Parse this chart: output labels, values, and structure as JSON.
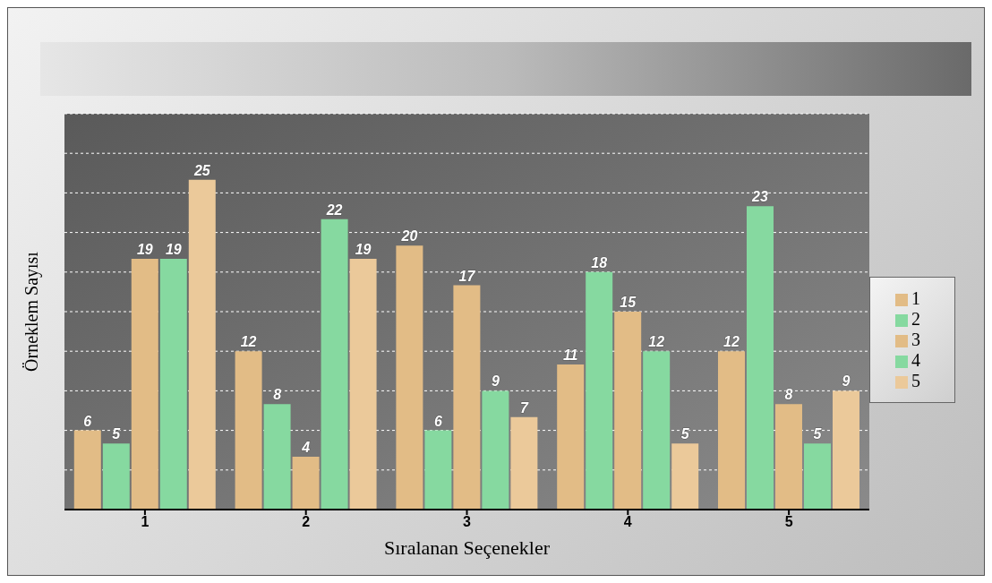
{
  "chart_data": {
    "type": "bar",
    "xlabel": "Sıralanan Seçenekler",
    "ylabel": "Örneklem Sayısı",
    "categories": [
      "1",
      "2",
      "3",
      "4",
      "5"
    ],
    "series": [
      {
        "name": "1",
        "color": "#e2bc86",
        "values": [
          6,
          12,
          20,
          11,
          12
        ]
      },
      {
        "name": "2",
        "color": "#86d9a0",
        "values": [
          5,
          8,
          6,
          18,
          23
        ]
      },
      {
        "name": "3",
        "color": "#e2bc86",
        "values": [
          19,
          4,
          17,
          15,
          8
        ]
      },
      {
        "name": "4",
        "color": "#86d9a0",
        "values": [
          19,
          22,
          9,
          12,
          5
        ]
      },
      {
        "name": "5",
        "color": "#ebc99a",
        "values": [
          25,
          19,
          7,
          5,
          9
        ]
      }
    ],
    "ylim": [
      0,
      30
    ],
    "tick_labels": "x",
    "grid": "y",
    "legend": "right",
    "data_labels": true
  }
}
